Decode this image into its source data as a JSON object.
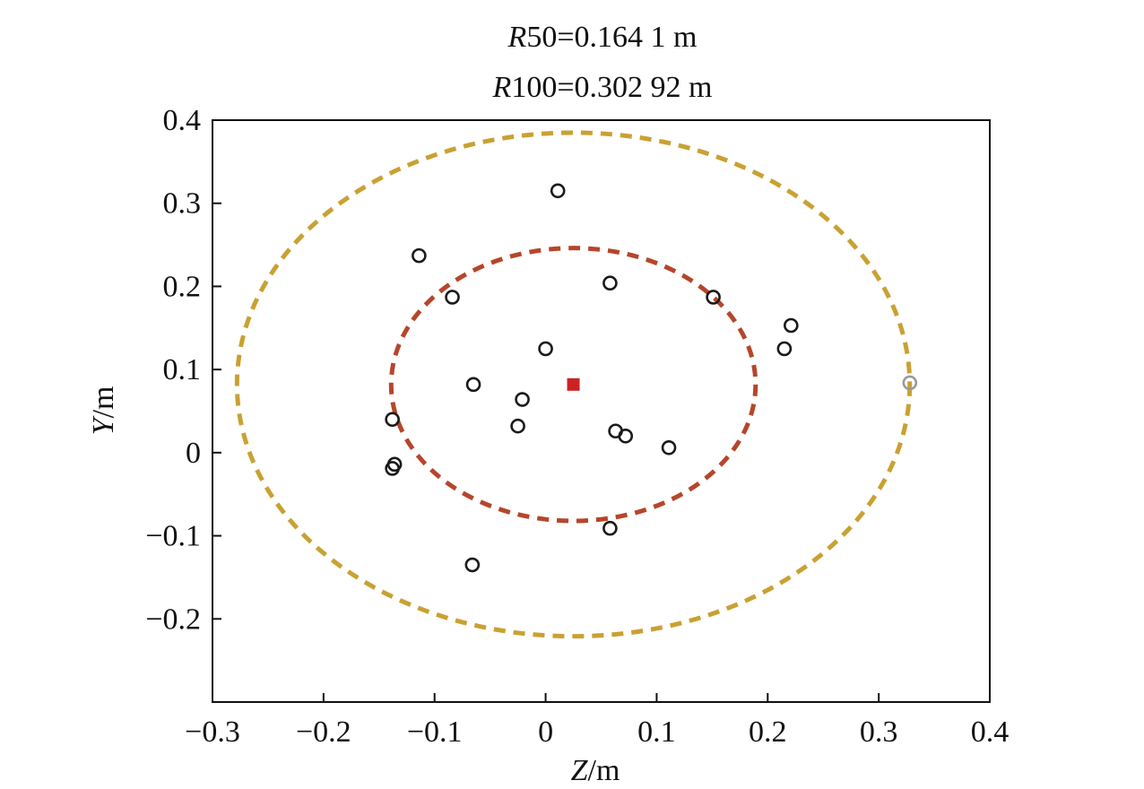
{
  "chart_data": {
    "type": "scatter",
    "title_lines": [
      {
        "var": "R",
        "rest": "50=0.164 1 m"
      },
      {
        "var": "R",
        "rest": "100=0.302 92 m"
      }
    ],
    "xlabel": {
      "var": "Z",
      "unit": "/m"
    },
    "ylabel": {
      "var": "Y",
      "unit": "/m"
    },
    "xlim": [
      -0.3,
      0.4
    ],
    "ylim": [
      -0.3,
      0.4
    ],
    "x_ticks": [
      -0.3,
      -0.2,
      -0.1,
      0,
      0.1,
      0.2,
      0.3,
      0.4
    ],
    "x_tick_labels": [
      "−0.3",
      "−0.2",
      "−0.1",
      "0",
      "0.1",
      "0.2",
      "0.3",
      "0.4"
    ],
    "y_ticks": [
      0.4,
      0.3,
      0.2,
      0.1,
      0,
      -0.1,
      -0.2
    ],
    "y_tick_labels": [
      "0.4",
      "0.3",
      "0.2",
      "0.1",
      "0",
      "−0.1",
      "−0.2"
    ],
    "grid": false,
    "legend": "none",
    "colors": {
      "points": "#1a1a1a",
      "outlier_point": "#999999",
      "center": "#cc2222",
      "r50_circle": "#b5462a",
      "r100_circle": "#c9a133"
    },
    "points": [
      {
        "x": 0.011,
        "y": 0.315
      },
      {
        "x": -0.114,
        "y": 0.237
      },
      {
        "x": -0.084,
        "y": 0.187
      },
      {
        "x": 0.058,
        "y": 0.204
      },
      {
        "x": 0.151,
        "y": 0.187
      },
      {
        "x": 0.221,
        "y": 0.153
      },
      {
        "x": 0.215,
        "y": 0.125
      },
      {
        "x": 0.0,
        "y": 0.125
      },
      {
        "x": -0.065,
        "y": 0.082
      },
      {
        "x": -0.021,
        "y": 0.064
      },
      {
        "x": -0.138,
        "y": 0.04
      },
      {
        "x": -0.025,
        "y": 0.032
      },
      {
        "x": 0.063,
        "y": 0.026
      },
      {
        "x": 0.072,
        "y": 0.02
      },
      {
        "x": 0.111,
        "y": 0.006
      },
      {
        "x": -0.136,
        "y": -0.014
      },
      {
        "x": -0.138,
        "y": -0.019
      },
      {
        "x": 0.058,
        "y": -0.091
      },
      {
        "x": -0.066,
        "y": -0.135
      }
    ],
    "outlier_points": [
      {
        "x": 0.328,
        "y": 0.084
      }
    ],
    "center": {
      "x": 0.025,
      "y": 0.082
    },
    "circles": [
      {
        "name": "R50",
        "radius": 0.1641
      },
      {
        "name": "R100",
        "radius": 0.30292
      }
    ]
  }
}
